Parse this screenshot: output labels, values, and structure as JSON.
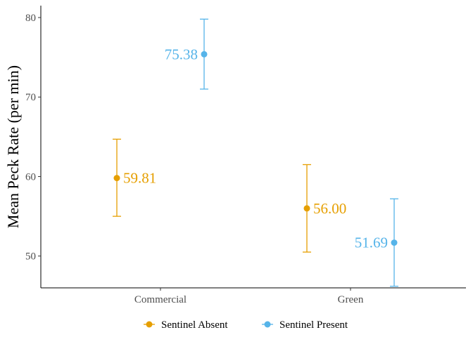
{
  "chart_data": {
    "type": "scatter",
    "title": "",
    "xlabel": "",
    "ylabel": "Mean Peck Rate (per min)",
    "categories": [
      "Commercial",
      "Green"
    ],
    "ylim": [
      46,
      81.5
    ],
    "yticks": [
      50,
      60,
      70,
      80
    ],
    "grid": false,
    "legend_position": "bottom",
    "series": [
      {
        "name": "Sentinel Absent",
        "color": "#E69F00",
        "values": [
          59.81,
          56.0
        ],
        "labels": [
          "59.81",
          "56.00"
        ],
        "err_low": [
          55.0,
          50.5
        ],
        "err_high": [
          64.7,
          61.5
        ]
      },
      {
        "name": "Sentinel Present",
        "color": "#56B4E9",
        "values": [
          75.38,
          51.69
        ],
        "labels": [
          "75.38",
          "51.69"
        ],
        "err_low": [
          71.0,
          46.2
        ],
        "err_high": [
          79.8,
          57.2
        ]
      }
    ]
  }
}
